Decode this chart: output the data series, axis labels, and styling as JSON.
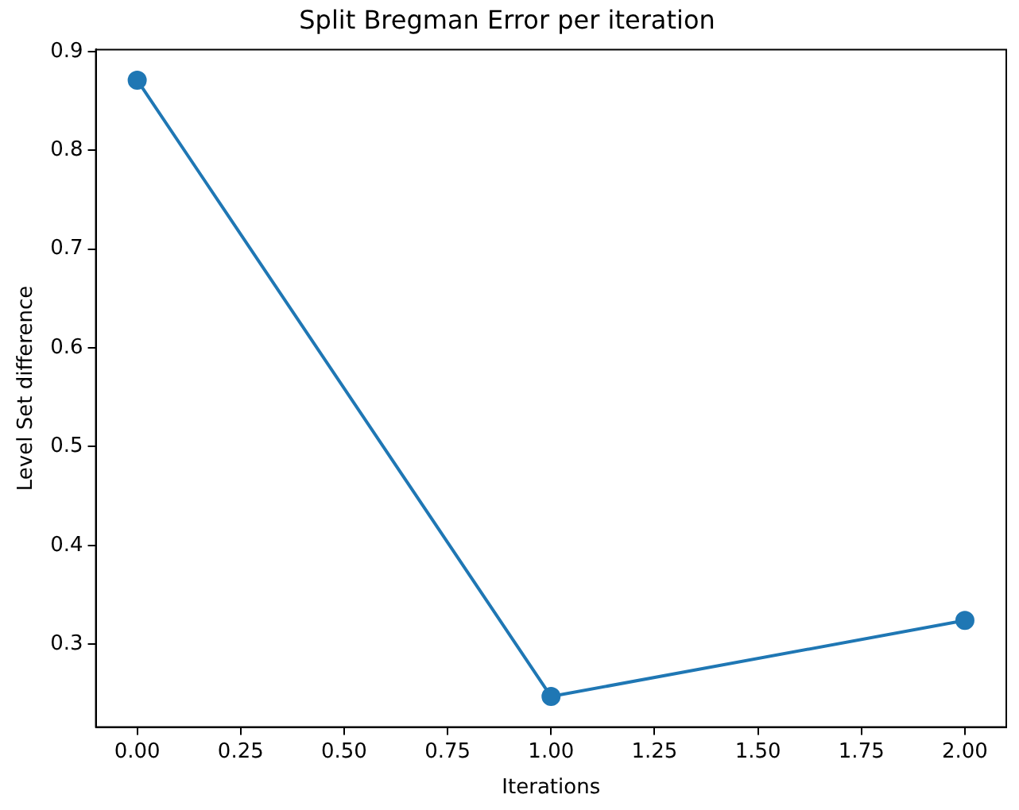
{
  "chart_data": {
    "type": "line",
    "title": "Split Bregman Error per iteration",
    "xlabel": "Iterations",
    "ylabel": "Level Set difference",
    "x": [
      0,
      1,
      2
    ],
    "series": [
      {
        "color": "#1f77b4",
        "values": [
          0.871,
          0.247,
          0.324
        ]
      }
    ],
    "xlim": [
      -0.1,
      2.1
    ],
    "xticks": [
      {
        "value": 0,
        "label": "0.00"
      },
      {
        "value": 0.25,
        "label": "0.25"
      },
      {
        "value": 0.5,
        "label": "0.50"
      },
      {
        "value": 0.75,
        "label": "0.75"
      },
      {
        "value": 1,
        "label": "1.00"
      },
      {
        "value": 1.25,
        "label": "1.25"
      },
      {
        "value": 1.5,
        "label": "1.50"
      },
      {
        "value": 1.75,
        "label": "1.75"
      },
      {
        "value": 2,
        "label": "2.00"
      }
    ],
    "ylim": [
      0.216,
      0.902
    ],
    "yticks": [
      0.3,
      0.4,
      0.5,
      0.6,
      0.7,
      0.8,
      0.9
    ],
    "grid": false,
    "legend": false,
    "marker": "circle",
    "line_style": "solid"
  }
}
